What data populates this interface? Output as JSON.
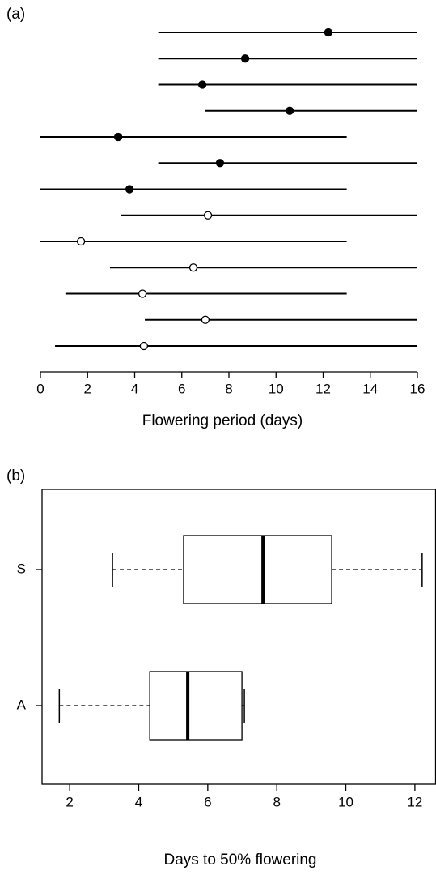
{
  "chart_data": [
    {
      "type": "range-dot",
      "panel_label": "(a)",
      "xlabel": "Flowering period (days)",
      "xlim": [
        0,
        16
      ],
      "xticks": [
        0,
        2,
        4,
        6,
        8,
        10,
        12,
        14,
        16
      ],
      "series": [
        {
          "color": "#000000",
          "starts": [
            5,
            5,
            5,
            7,
            0,
            5,
            0
          ],
          "ends": [
            16,
            16,
            16,
            16,
            13,
            16,
            13
          ],
          "values": [
            12.22,
            8.69,
            6.87,
            10.58,
            3.3,
            7.62,
            3.78
          ]
        },
        {
          "color": "#ffffff",
          "starts": [
            3.43,
            0,
            2.95,
            1.06,
            4.43,
            0.62
          ],
          "ends": [
            16,
            13,
            16,
            13,
            16,
            16
          ],
          "values": [
            7.11,
            1.72,
            6.49,
            4.33,
            7.0,
            4.39
          ]
        }
      ]
    },
    {
      "type": "boxplot",
      "panel_label": "(b)",
      "xlabel": "Days to 50% flowering",
      "xlim": [
        1.2,
        12.6
      ],
      "xticks": [
        2,
        4,
        6,
        8,
        10,
        12
      ],
      "categories": [
        "S",
        "A"
      ],
      "min": [
        3.24,
        1.7
      ],
      "q1": [
        5.3,
        4.32
      ],
      "median": [
        7.6,
        5.42
      ],
      "q3": [
        9.59,
        6.99
      ],
      "max": [
        12.21,
        7.06
      ]
    }
  ]
}
